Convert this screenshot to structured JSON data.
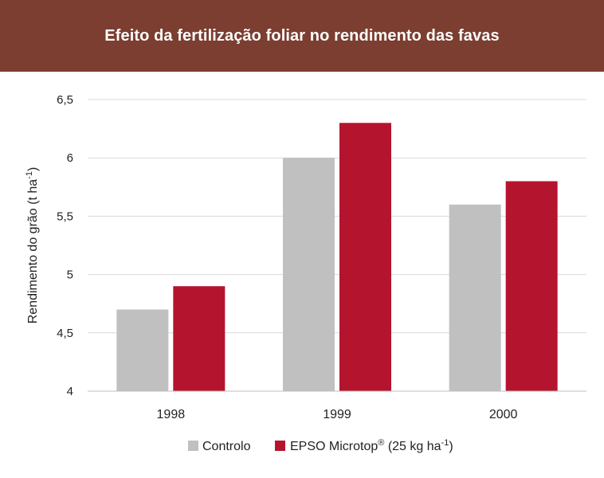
{
  "header": {
    "title": "Efeito da fertilização foliar no rendimento das favas"
  },
  "chart_data": {
    "type": "bar",
    "title": "Efeito da fertilização foliar no rendimento das favas",
    "categories": [
      "1998",
      "1999",
      "2000"
    ],
    "series": [
      {
        "name": "Controlo",
        "values": [
          4.7,
          6.0,
          5.6
        ],
        "color": "#c0c0c0"
      },
      {
        "name": "EPSO Microtop",
        "name_sup": "®",
        "name_suffix": " (25 kg ha",
        "name_suffix_sup": "-1",
        "name_end": ")",
        "values": [
          4.9,
          6.3,
          5.8
        ],
        "color": "#b5142f"
      }
    ],
    "ylabel": "Rendimento do grão (t ha",
    "ylabel_sup": "-1",
    "ylabel_end": ")",
    "ylim": [
      4,
      6.5
    ],
    "yticks": [
      "4",
      "4,5",
      "5",
      "5,5",
      "6",
      "6,5"
    ],
    "ytick_values": [
      4,
      4.5,
      5,
      5.5,
      6,
      6.5
    ],
    "grid": true,
    "legend_position": "bottom"
  },
  "colors": {
    "header_bg": "#7b3e30",
    "grid": "#d9d9d9",
    "axis": "#bfbfbf"
  }
}
